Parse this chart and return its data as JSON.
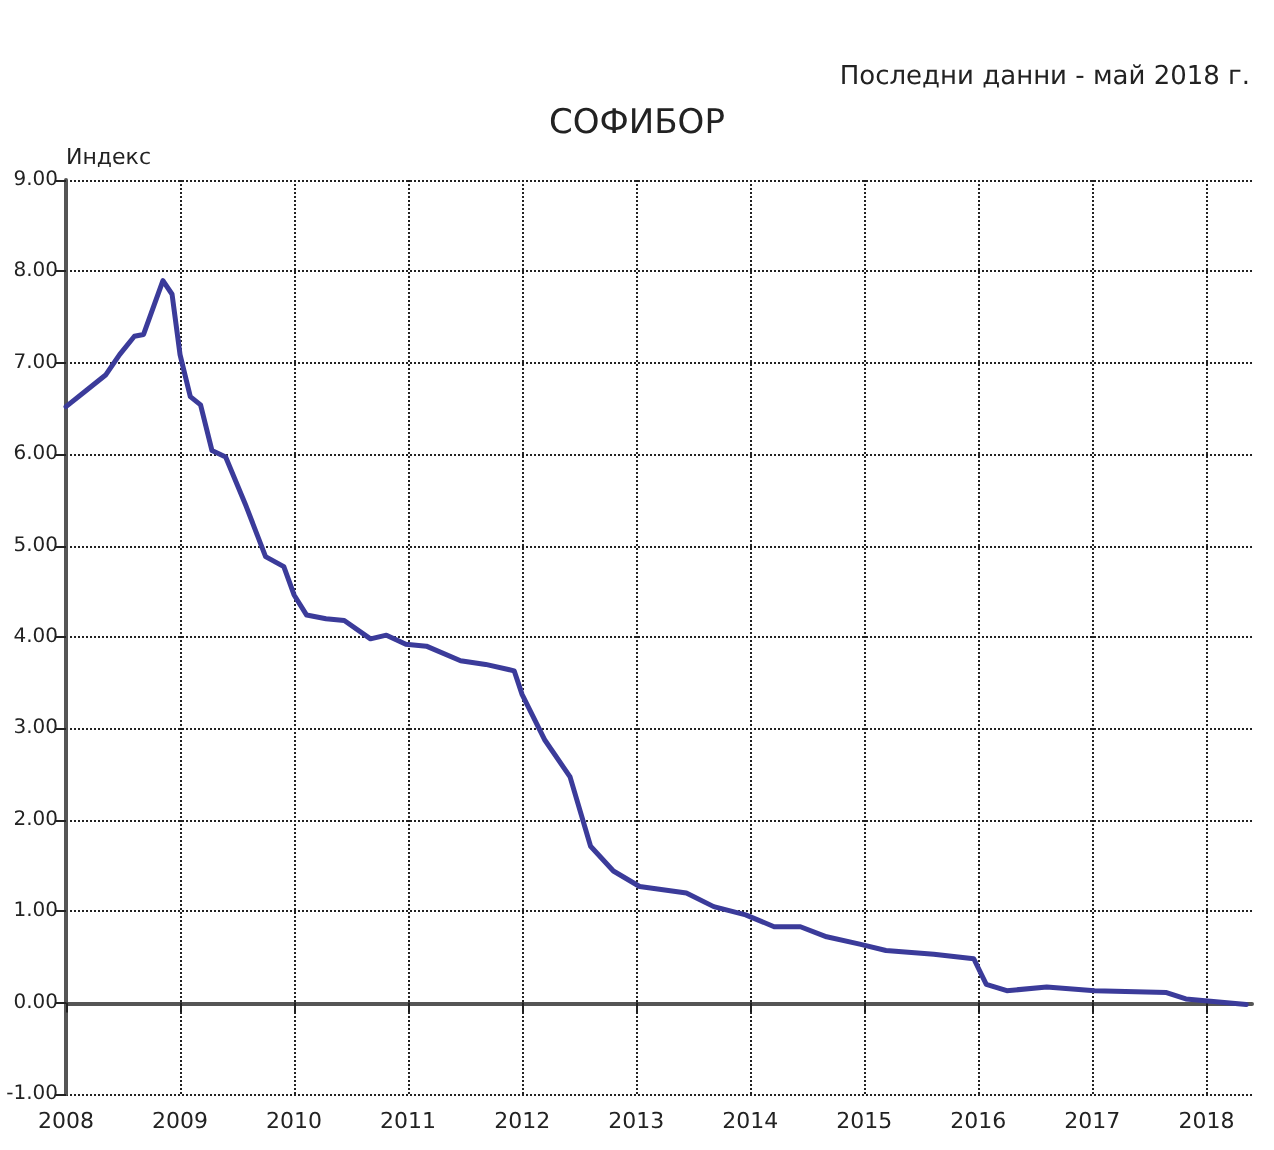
{
  "chart_data": {
    "type": "line",
    "title": "СОФИБОР",
    "ylabel": "Индекс",
    "annotations": [
      "Последни данни - май 2018 г."
    ],
    "x": [
      2008.0,
      2008.18,
      2008.35,
      2008.47,
      2008.6,
      2008.68,
      2008.85,
      2008.93,
      2009.0,
      2009.09,
      2009.18,
      2009.28,
      2009.4,
      2009.58,
      2009.75,
      2009.91,
      2010.0,
      2010.11,
      2010.28,
      2010.44,
      2010.67,
      2010.81,
      2010.98,
      2011.16,
      2011.46,
      2011.68,
      2011.93,
      2012.0,
      2012.2,
      2012.42,
      2012.6,
      2012.8,
      2013.03,
      2013.44,
      2013.68,
      2013.96,
      2014.21,
      2014.44,
      2014.67,
      2014.96,
      2015.19,
      2015.61,
      2015.96,
      2016.07,
      2016.25,
      2016.6,
      2017.02,
      2017.65,
      2017.82,
      2018.35
    ],
    "series": [
      {
        "color": "#3b3b9a",
        "values": [
          6.52,
          6.7,
          6.87,
          7.09,
          7.29,
          7.31,
          7.9,
          7.75,
          7.09,
          6.63,
          6.54,
          6.04,
          5.97,
          5.43,
          4.88,
          4.77,
          4.46,
          4.24,
          4.2,
          4.18,
          3.98,
          4.02,
          3.92,
          3.9,
          3.74,
          3.7,
          3.63,
          3.37,
          2.87,
          2.47,
          1.71,
          1.44,
          1.27,
          1.2,
          1.05,
          0.96,
          0.83,
          0.83,
          0.72,
          0.64,
          0.57,
          0.53,
          0.48,
          0.2,
          0.13,
          0.17,
          0.13,
          0.11,
          0.04,
          -0.02
        ]
      }
    ],
    "xlim": [
      2008,
      2018.4
    ],
    "xticks": [
      2008,
      2009,
      2010,
      2011,
      2012,
      2013,
      2014,
      2015,
      2016,
      2017,
      2018
    ],
    "ylim": [
      -1,
      9
    ],
    "yticks": [
      {
        "value": -1,
        "label": "-1.00"
      },
      {
        "value": 0,
        "label": "0.00"
      },
      {
        "value": 1,
        "label": "1.00"
      },
      {
        "value": 2,
        "label": "2.00"
      },
      {
        "value": 3,
        "label": "3.00"
      },
      {
        "value": 4,
        "label": "4.00"
      },
      {
        "value": 5,
        "label": "5.00"
      },
      {
        "value": 6,
        "label": "6.00"
      },
      {
        "value": 7,
        "label": "7.00"
      },
      {
        "value": 8,
        "label": "8.00"
      },
      {
        "value": 9,
        "label": "9.00"
      }
    ],
    "grid": true,
    "marker": "none",
    "line_style": "solid"
  }
}
